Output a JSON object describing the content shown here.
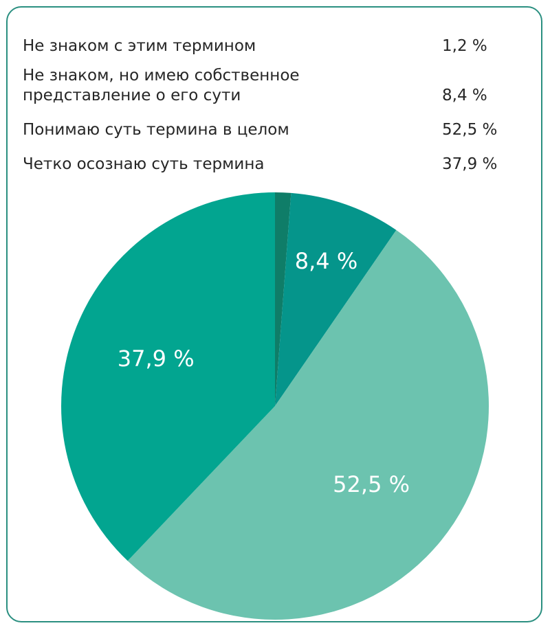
{
  "chart_data": {
    "type": "pie",
    "start": "top (12 o'clock), clockwise",
    "slices": [
      {
        "label": "Не знаком с этим термином",
        "value": 1.2,
        "display": "1,2 %",
        "color": "#0f7d68",
        "slice_label": ""
      },
      {
        "label": "Не знаком, но имею собственное представление о его сути",
        "value": 8.4,
        "display": "8,4 %",
        "color": "#05958b",
        "slice_label": "8,4 %"
      },
      {
        "label": "Понимаю суть термина в целом",
        "value": 52.5,
        "display": "52,5 %",
        "color": "#6cc3af",
        "slice_label": "52,5 %"
      },
      {
        "label": "Четко осознаю суть термина",
        "value": 37.9,
        "display": "37,9 %",
        "color": "#02a590",
        "slice_label": "37,9 %"
      }
    ]
  },
  "legend": {
    "items": [
      {
        "label": "Не знаком с этим термином",
        "value": "1,2 %"
      },
      {
        "label": "Не знаком, но имею собственное представление о его сути",
        "value": "8,4 %"
      },
      {
        "label": "Понимаю суть термина в целом",
        "value": "52,5 %"
      },
      {
        "label": "Четко осознаю суть термина",
        "value": "37,9 %"
      }
    ]
  },
  "colors": {
    "frame_border": "#2a8f80",
    "text": "#262626",
    "slice_label_text": "#ffffff"
  }
}
